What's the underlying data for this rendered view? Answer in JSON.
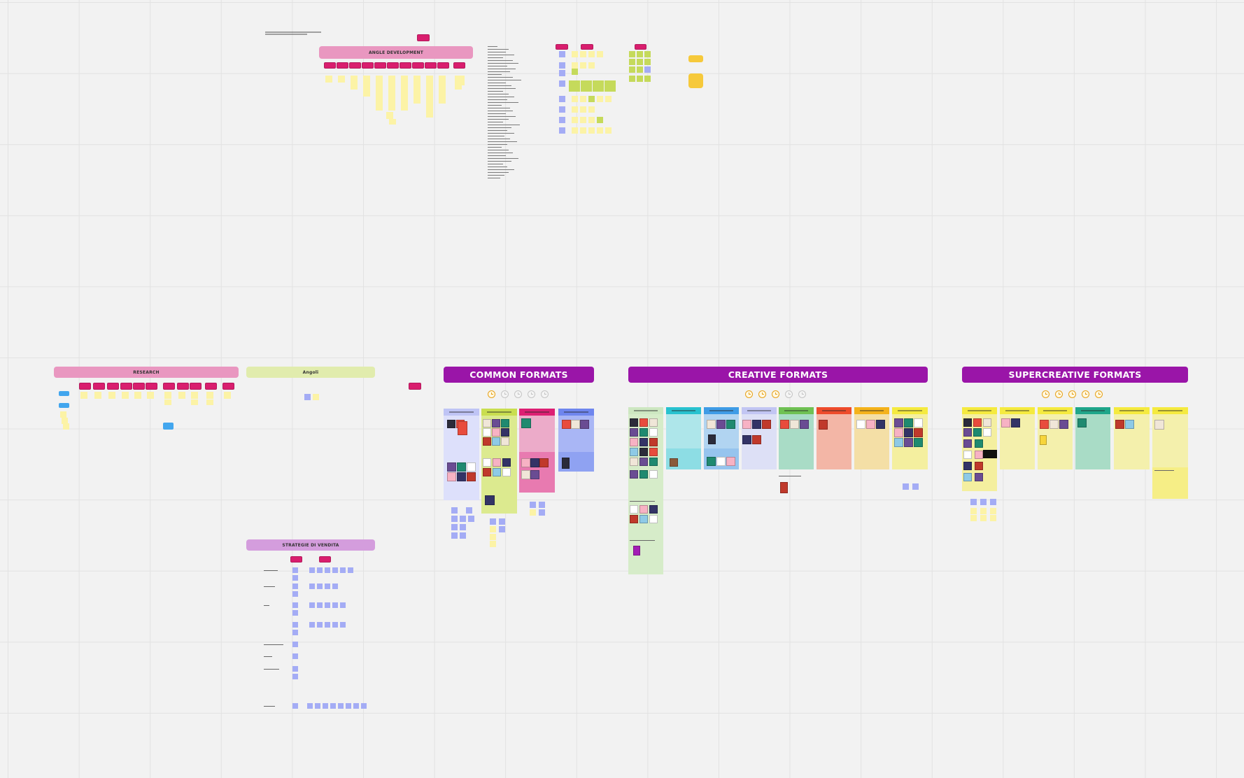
{
  "board": {
    "background": "#f2f2f2",
    "grid_color": "#e2e2e2"
  },
  "sections": {
    "angle_development": {
      "title": "ANGLE DEVELOPMENT",
      "color": "#e997c0"
    },
    "research": {
      "title": "RESEARCH",
      "color": "#e997c0"
    },
    "angoli": {
      "title": "Angoli",
      "color": "#e1ecad"
    },
    "strategie": {
      "title": "STRATEGIE DI VENDITA",
      "color": "#d49ddd"
    },
    "common_formats": {
      "title": "COMMON FORMATS",
      "color": "#9a15a8",
      "clocks_on": 1,
      "clocks_total": 5
    },
    "creative_formats": {
      "title": "CREATIVE FORMATS",
      "color": "#9a15a8",
      "clocks_on": 3,
      "clocks_total": 5
    },
    "supercreative_formats": {
      "title": "SUPERCREATIVE FORMATS",
      "color": "#9a15a8",
      "clocks_on": 5,
      "clocks_total": 5
    }
  },
  "colors": {
    "tag": "#d91e6e",
    "sticky_yellow": "#fcf3a6",
    "sticky_lavender": "#a4acf5",
    "sticky_green": "#c5da5b",
    "sticky_blue": "#42a6ee",
    "clock_active": "#e7a21a",
    "clock_inactive": "#c5c5c5"
  },
  "icons": {
    "clock": "clock-icon",
    "card": "sticky-note"
  }
}
